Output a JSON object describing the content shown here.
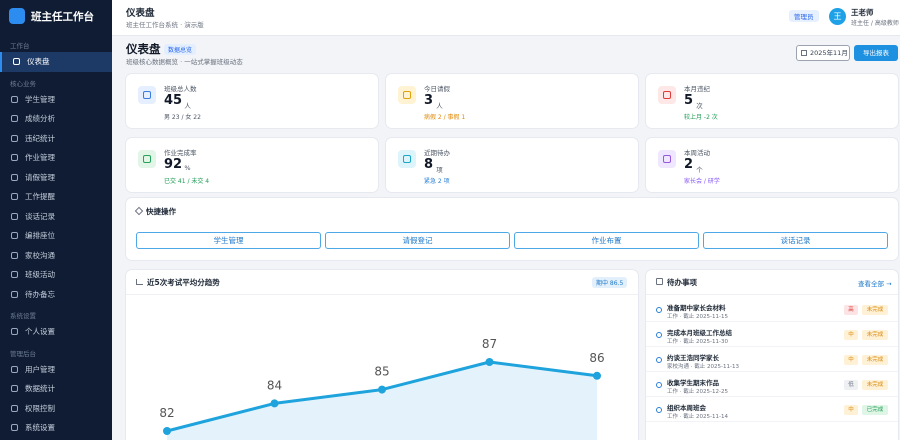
{
  "sidebar": {
    "brand": "班主任工作台",
    "groups": [
      {
        "label": "工作台",
        "items": [
          "仪表盘"
        ]
      },
      {
        "label": "核心业务",
        "items": [
          "学生管理",
          "成绩分析",
          "违纪统计",
          "作业管理",
          "请假管理",
          "工作提醒",
          "谈话记录",
          "编排座位",
          "家校沟通",
          "班级活动",
          "待办备忘"
        ]
      },
      {
        "label": "系统设置",
        "items": [
          "个人设置"
        ]
      },
      {
        "label": "管理后台",
        "items": [
          "用户管理",
          "数据统计",
          "权限控制",
          "系统设置"
        ]
      }
    ]
  },
  "topbar": {
    "title": "仪表盘",
    "subtitle": "班主任工作台系统 · 演示版",
    "role": "管理员",
    "avatar": "王",
    "user": "王老师",
    "user_title": "班主任 / 高级教师"
  },
  "header": {
    "title": "仪表盘",
    "badge": "数据总览",
    "subtitle": "班级核心数据概览 · 一站式掌握班级动态",
    "month": "2025年11月",
    "export": "导出报表"
  },
  "stats": [
    {
      "label": "班级总人数",
      "value": 45,
      "unit": "人",
      "note": "男 23 / 女 22"
    },
    {
      "label": "今日请假",
      "value": 3,
      "unit": "人",
      "note": "病假 2 / 事假 1"
    },
    {
      "label": "本月违纪",
      "value": 5,
      "unit": "次",
      "note": "较上月 -2 次"
    },
    {
      "label": "作业完成率",
      "value": 92,
      "unit": "%",
      "note": "已交 41 / 未交 4"
    },
    {
      "label": "近期待办",
      "value": 8,
      "unit": "项",
      "note": "紧急 2 项"
    },
    {
      "label": "本周活动",
      "value": 2,
      "unit": "个",
      "note": "家长会 / 研学"
    }
  ],
  "quick_actions": {
    "title": "快捷操作",
    "actions": [
      "学生管理",
      "请假登记",
      "作业布置",
      "谈话记录"
    ]
  },
  "chart_data": {
    "type": "line",
    "title": "近5次考试平均分趋势",
    "subtitle": "期中 86.5",
    "values": [
      82,
      84,
      85,
      87,
      86
    ],
    "color": "#1fa3dd"
  },
  "todos": {
    "title": "待办事项",
    "link": "查看全部 →",
    "items": [
      {
        "title": "准备期中家长会材料",
        "meta": "工作 · 截止 2025-11-15",
        "priority": "高",
        "status": "未完成"
      },
      {
        "title": "完成本月班级工作总结",
        "meta": "工作 · 截止 2025-11-30",
        "priority": "中",
        "status": "未完成"
      },
      {
        "title": "约谈王浩同学家长",
        "meta": "家校沟通 · 截止 2025-11-13",
        "priority": "中",
        "status": "未完成"
      },
      {
        "title": "收集学生期末作品",
        "meta": "工作 · 截止 2025-12-25",
        "priority": "低",
        "status": "未完成"
      },
      {
        "title": "组织本周班会",
        "meta": "工作 · 截止 2025-11-14",
        "priority": "中",
        "status": "已完成"
      }
    ]
  }
}
